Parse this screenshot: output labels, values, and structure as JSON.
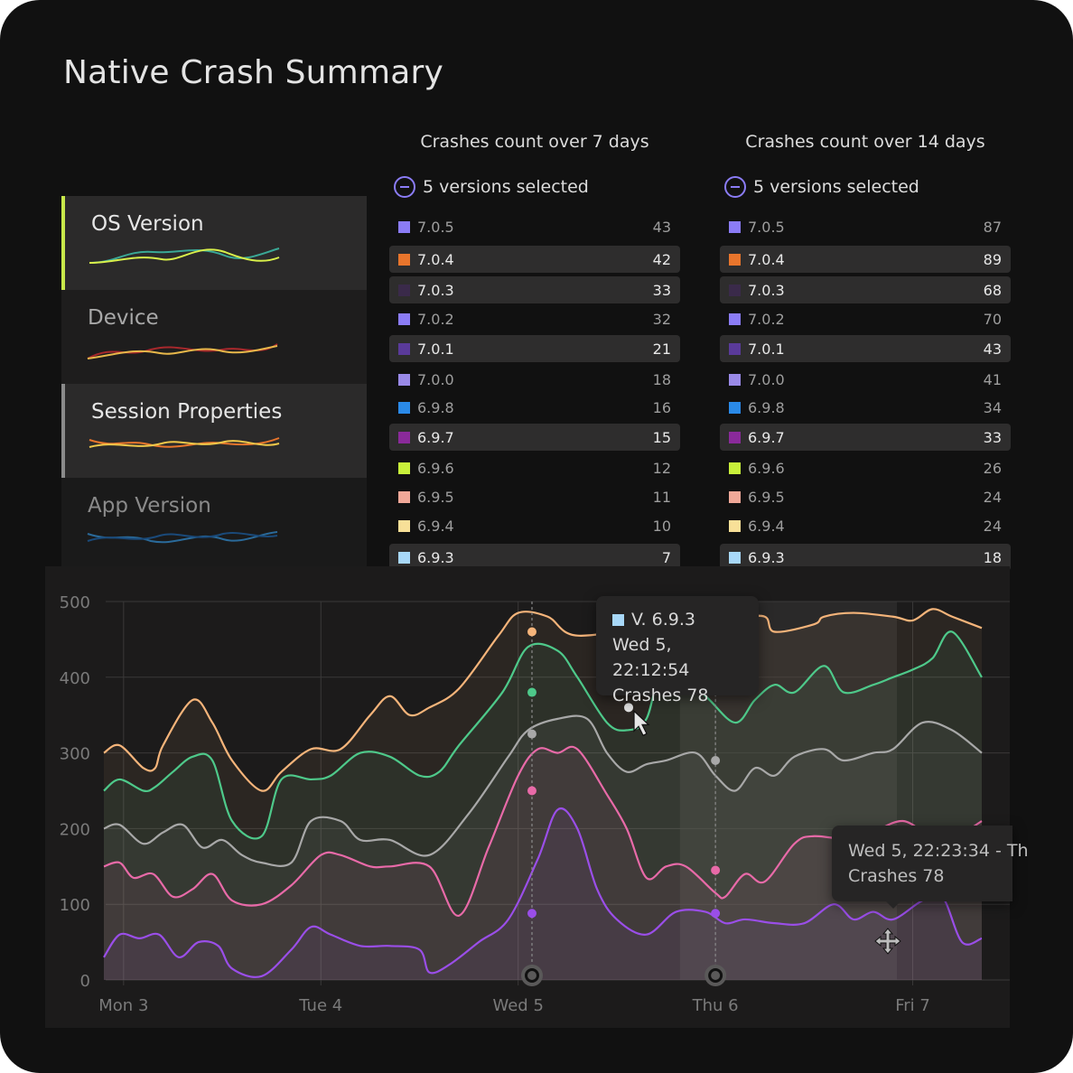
{
  "page": {
    "title": "Native Crash Summary"
  },
  "categories": [
    {
      "label": "OS Version",
      "state": "active"
    },
    {
      "label": "Device",
      "state": "inactive"
    },
    {
      "label": "Session Properties",
      "state": "active"
    },
    {
      "label": "App Version",
      "state": "inactive"
    }
  ],
  "tables": [
    {
      "heading": "Crashes count over 7 days",
      "selection": "5 versions selected",
      "rows": [
        {
          "version": "7.0.5",
          "count": "43",
          "color": "#8b7cf6",
          "highlighted": false
        },
        {
          "version": "7.0.4",
          "count": "42",
          "color": "#e8752c",
          "highlighted": true
        },
        {
          "version": "7.0.3",
          "count": "33",
          "color": "#3a2a4a",
          "highlighted": true
        },
        {
          "version": "7.0.2",
          "count": "32",
          "color": "#8b7cf6",
          "highlighted": false
        },
        {
          "version": "7.0.1",
          "count": "21",
          "color": "#5a3a9a",
          "highlighted": true
        },
        {
          "version": "7.0.0",
          "count": "18",
          "color": "#9a8ae8",
          "highlighted": false
        },
        {
          "version": "6.9.8",
          "count": "16",
          "color": "#2a8ae8",
          "highlighted": false
        },
        {
          "version": "6.9.7",
          "count": "15",
          "color": "#8a2a9a",
          "highlighted": true
        },
        {
          "version": "6.9.6",
          "count": "12",
          "color": "#c8f03a",
          "highlighted": false
        },
        {
          "version": "6.9.5",
          "count": "11",
          "color": "#f0a898",
          "highlighted": false
        },
        {
          "version": "6.9.4",
          "count": "10",
          "color": "#f8e098",
          "highlighted": false
        },
        {
          "version": "6.9.3",
          "count": "7",
          "color": "#a8d8f8",
          "highlighted": true
        }
      ]
    },
    {
      "heading": "Crashes count over 14 days",
      "selection": "5 versions selected",
      "rows": [
        {
          "version": "7.0.5",
          "count": "87",
          "color": "#8b7cf6",
          "highlighted": false
        },
        {
          "version": "7.0.4",
          "count": "89",
          "color": "#e8752c",
          "highlighted": true
        },
        {
          "version": "7.0.3",
          "count": "68",
          "color": "#3a2a4a",
          "highlighted": true
        },
        {
          "version": "7.0.2",
          "count": "70",
          "color": "#8b7cf6",
          "highlighted": false
        },
        {
          "version": "7.0.1",
          "count": "43",
          "color": "#5a3a9a",
          "highlighted": true
        },
        {
          "version": "7.0.0",
          "count": "41",
          "color": "#9a8ae8",
          "highlighted": false
        },
        {
          "version": "6.9.8",
          "count": "34",
          "color": "#2a8ae8",
          "highlighted": false
        },
        {
          "version": "6.9.7",
          "count": "33",
          "color": "#8a2a9a",
          "highlighted": true
        },
        {
          "version": "6.9.6",
          "count": "26",
          "color": "#c8f03a",
          "highlighted": false
        },
        {
          "version": "6.9.5",
          "count": "24",
          "color": "#f0a898",
          "highlighted": false
        },
        {
          "version": "6.9.4",
          "count": "24",
          "color": "#f8e098",
          "highlighted": false
        },
        {
          "version": "6.9.3",
          "count": "18",
          "color": "#a8d8f8",
          "highlighted": true
        }
      ]
    }
  ],
  "chart_data": {
    "type": "line",
    "ylim": [
      0,
      500
    ],
    "yticks": [
      "500",
      "400",
      "300",
      "200",
      "100",
      "0"
    ],
    "ytick_values": [
      500,
      400,
      300,
      200,
      100,
      0
    ],
    "xticks": [
      {
        "label": "Mon 3",
        "x": 0.5
      },
      {
        "label": "Tue 4",
        "x": 1.5
      },
      {
        "label": "Wed 5",
        "x": 2.5
      },
      {
        "label": "Thu 6",
        "x": 3.5
      },
      {
        "label": "Fri 7",
        "x": 4.5
      }
    ],
    "xlim": [
      0.4,
      4.85
    ],
    "series": [
      {
        "name": "peach",
        "color": "#f5b47a",
        "points": [
          [
            0.4,
            300
          ],
          [
            0.48,
            310
          ],
          [
            0.6,
            280
          ],
          [
            0.66,
            280
          ],
          [
            0.7,
            310
          ],
          [
            0.85,
            370
          ],
          [
            0.95,
            340
          ],
          [
            1.05,
            290
          ],
          [
            1.2,
            250
          ],
          [
            1.3,
            275
          ],
          [
            1.45,
            305
          ],
          [
            1.6,
            305
          ],
          [
            1.75,
            350
          ],
          [
            1.85,
            375
          ],
          [
            1.95,
            350
          ],
          [
            2.05,
            360
          ],
          [
            2.2,
            385
          ],
          [
            2.4,
            455
          ],
          [
            2.5,
            485
          ],
          [
            2.65,
            480
          ],
          [
            2.8,
            455
          ],
          [
            3.2,
            470
          ],
          [
            3.5,
            485
          ],
          [
            3.6,
            480
          ],
          [
            3.75,
            480
          ],
          [
            3.8,
            460
          ],
          [
            4.0,
            470
          ],
          [
            4.05,
            480
          ],
          [
            4.2,
            485
          ],
          [
            4.4,
            480
          ],
          [
            4.5,
            475
          ],
          [
            4.6,
            490
          ],
          [
            4.7,
            480
          ],
          [
            4.85,
            465
          ]
        ]
      },
      {
        "name": "green",
        "color": "#4ec98a",
        "points": [
          [
            0.4,
            250
          ],
          [
            0.48,
            265
          ],
          [
            0.6,
            250
          ],
          [
            0.66,
            255
          ],
          [
            0.75,
            275
          ],
          [
            0.85,
            295
          ],
          [
            0.95,
            290
          ],
          [
            1.05,
            210
          ],
          [
            1.2,
            190
          ],
          [
            1.3,
            265
          ],
          [
            1.45,
            265
          ],
          [
            1.55,
            270
          ],
          [
            1.7,
            300
          ],
          [
            1.85,
            295
          ],
          [
            2.0,
            270
          ],
          [
            2.1,
            275
          ],
          [
            2.2,
            310
          ],
          [
            2.42,
            380
          ],
          [
            2.55,
            440
          ],
          [
            2.7,
            435
          ],
          [
            2.8,
            400
          ],
          [
            2.95,
            340
          ],
          [
            3.05,
            330
          ],
          [
            3.15,
            345
          ],
          [
            3.25,
            420
          ],
          [
            3.45,
            375
          ],
          [
            3.6,
            340
          ],
          [
            3.7,
            370
          ],
          [
            3.8,
            390
          ],
          [
            3.9,
            380
          ],
          [
            4.05,
            415
          ],
          [
            4.15,
            380
          ],
          [
            4.3,
            390
          ],
          [
            4.4,
            400
          ],
          [
            4.5,
            410
          ],
          [
            4.6,
            425
          ],
          [
            4.7,
            460
          ],
          [
            4.85,
            400
          ]
        ]
      },
      {
        "name": "grey",
        "color": "#a8a8a8",
        "points": [
          [
            0.4,
            200
          ],
          [
            0.48,
            205
          ],
          [
            0.6,
            180
          ],
          [
            0.7,
            195
          ],
          [
            0.8,
            205
          ],
          [
            0.9,
            175
          ],
          [
            1.0,
            185
          ],
          [
            1.1,
            165
          ],
          [
            1.2,
            155
          ],
          [
            1.35,
            155
          ],
          [
            1.45,
            210
          ],
          [
            1.6,
            210
          ],
          [
            1.7,
            185
          ],
          [
            1.85,
            185
          ],
          [
            2.05,
            165
          ],
          [
            2.25,
            220
          ],
          [
            2.45,
            295
          ],
          [
            2.55,
            330
          ],
          [
            2.7,
            345
          ],
          [
            2.85,
            345
          ],
          [
            2.95,
            300
          ],
          [
            3.05,
            275
          ],
          [
            3.15,
            285
          ],
          [
            3.25,
            290
          ],
          [
            3.4,
            300
          ],
          [
            3.5,
            270
          ],
          [
            3.6,
            250
          ],
          [
            3.7,
            280
          ],
          [
            3.8,
            270
          ],
          [
            3.9,
            295
          ],
          [
            4.05,
            305
          ],
          [
            4.15,
            290
          ],
          [
            4.3,
            300
          ],
          [
            4.4,
            305
          ],
          [
            4.55,
            340
          ],
          [
            4.7,
            330
          ],
          [
            4.85,
            300
          ]
        ]
      },
      {
        "name": "pink",
        "color": "#e86aa8",
        "points": [
          [
            0.4,
            150
          ],
          [
            0.48,
            155
          ],
          [
            0.55,
            135
          ],
          [
            0.65,
            140
          ],
          [
            0.75,
            110
          ],
          [
            0.85,
            120
          ],
          [
            0.95,
            140
          ],
          [
            1.05,
            105
          ],
          [
            1.2,
            100
          ],
          [
            1.35,
            125
          ],
          [
            1.5,
            165
          ],
          [
            1.6,
            165
          ],
          [
            1.75,
            150
          ],
          [
            1.85,
            150
          ],
          [
            2.05,
            150
          ],
          [
            2.2,
            85
          ],
          [
            2.35,
            175
          ],
          [
            2.5,
            270
          ],
          [
            2.6,
            305
          ],
          [
            2.7,
            300
          ],
          [
            2.8,
            305
          ],
          [
            2.95,
            245
          ],
          [
            3.05,
            200
          ],
          [
            3.15,
            135
          ],
          [
            3.25,
            150
          ],
          [
            3.35,
            150
          ],
          [
            3.5,
            115
          ],
          [
            3.55,
            110
          ],
          [
            3.65,
            140
          ],
          [
            3.75,
            130
          ],
          [
            3.9,
            180
          ],
          [
            4.0,
            190
          ],
          [
            4.2,
            185
          ],
          [
            4.3,
            195
          ],
          [
            4.45,
            210
          ],
          [
            4.6,
            190
          ],
          [
            4.75,
            195
          ],
          [
            4.85,
            210
          ]
        ]
      },
      {
        "name": "violet",
        "color": "#9a4ee8",
        "points": [
          [
            0.4,
            30
          ],
          [
            0.48,
            60
          ],
          [
            0.58,
            55
          ],
          [
            0.68,
            60
          ],
          [
            0.78,
            30
          ],
          [
            0.88,
            50
          ],
          [
            0.98,
            45
          ],
          [
            1.05,
            15
          ],
          [
            1.2,
            5
          ],
          [
            1.35,
            40
          ],
          [
            1.45,
            70
          ],
          [
            1.55,
            60
          ],
          [
            1.7,
            45
          ],
          [
            1.85,
            45
          ],
          [
            2.0,
            40
          ],
          [
            2.05,
            10
          ],
          [
            2.15,
            20
          ],
          [
            2.3,
            50
          ],
          [
            2.45,
            80
          ],
          [
            2.6,
            160
          ],
          [
            2.7,
            225
          ],
          [
            2.8,
            200
          ],
          [
            2.9,
            120
          ],
          [
            3.0,
            80
          ],
          [
            3.15,
            60
          ],
          [
            3.3,
            90
          ],
          [
            3.45,
            90
          ],
          [
            3.55,
            75
          ],
          [
            3.65,
            80
          ],
          [
            3.8,
            75
          ],
          [
            3.95,
            75
          ],
          [
            4.1,
            100
          ],
          [
            4.2,
            80
          ],
          [
            4.3,
            90
          ],
          [
            4.4,
            80
          ],
          [
            4.55,
            105
          ],
          [
            4.65,
            110
          ],
          [
            4.75,
            50
          ],
          [
            4.85,
            55
          ]
        ]
      }
    ],
    "markers": [
      {
        "x": 2.57,
        "values": [
          460,
          380,
          325,
          250,
          88
        ]
      },
      {
        "x": 3.5,
        "values": [
          290,
          145,
          88
        ]
      }
    ],
    "hover_point": {
      "x": 3.06,
      "y": 360
    }
  },
  "tooltips": [
    {
      "title": "V. 6.9.3",
      "time": "Wed 5, 22:12:54",
      "value": "Crashes 78",
      "swatch": "#a8d8f8"
    },
    {
      "time": "Wed 5, 22:23:34 - Th",
      "value": "Crashes 78"
    }
  ]
}
